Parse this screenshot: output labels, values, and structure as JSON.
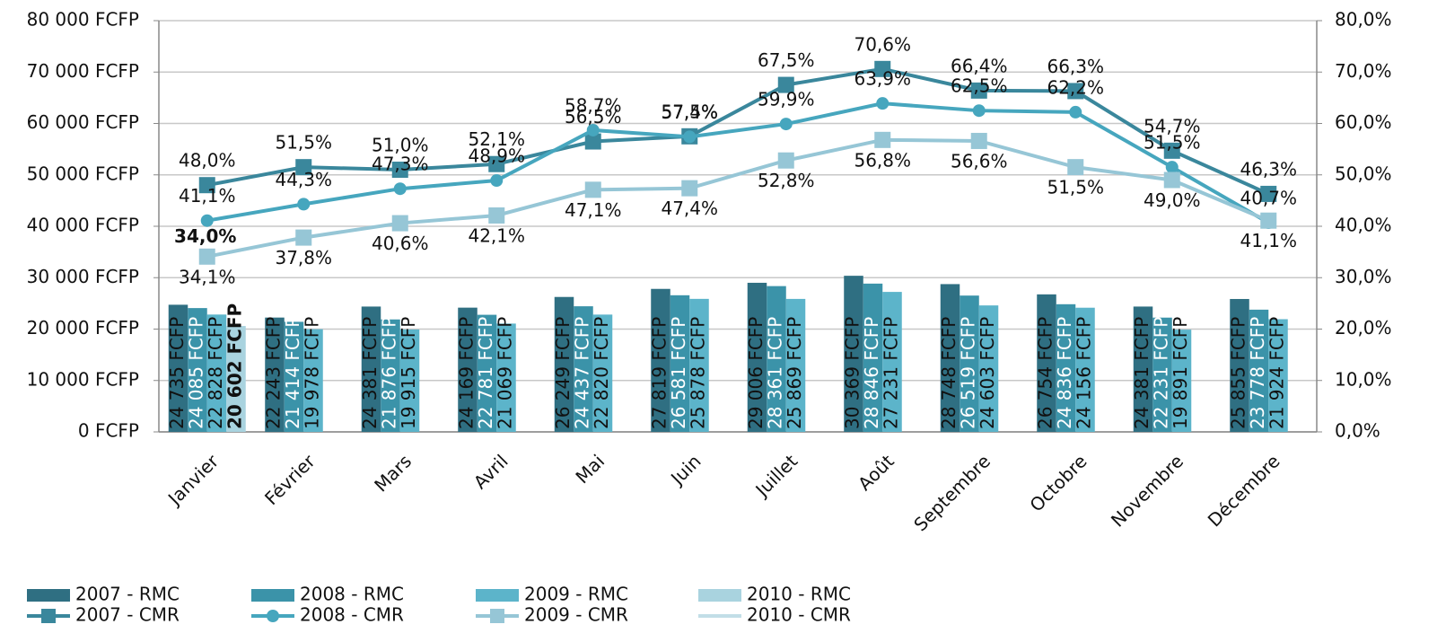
{
  "chart_data": {
    "type": "bar",
    "categories": [
      "Janvier",
      "Février",
      "Mars",
      "Avril",
      "Mai",
      "Juin",
      "Juillet",
      "Août",
      "Septembre",
      "Octobre",
      "Novembre",
      "Décembre"
    ],
    "ylim": [
      0,
      80000
    ],
    "yticks": [
      {
        "value": 0,
        "label": "0 FCFP"
      },
      {
        "value": 10000,
        "label": "10 000 FCFP"
      },
      {
        "value": 20000,
        "label": "20 000 FCFP"
      },
      {
        "value": 30000,
        "label": "30 000 FCFP"
      },
      {
        "value": 40000,
        "label": "40 000 FCFP"
      },
      {
        "value": 50000,
        "label": "50 000 FCFP"
      },
      {
        "value": 60000,
        "label": "60 000 FCFP"
      },
      {
        "value": 70000,
        "label": "70 000 FCFP"
      },
      {
        "value": 80000,
        "label": "80 000 FCFP"
      }
    ],
    "y2lim": [
      0,
      80
    ],
    "y2ticks": [
      {
        "value": 0,
        "label": "0,0%"
      },
      {
        "value": 10,
        "label": "10,0%"
      },
      {
        "value": 20,
        "label": "20,0%"
      },
      {
        "value": 30,
        "label": "30,0%"
      },
      {
        "value": 40,
        "label": "40,0%"
      },
      {
        "value": 50,
        "label": "50,0%"
      },
      {
        "value": 60,
        "label": "60,0%"
      },
      {
        "value": 70,
        "label": "70,0%"
      },
      {
        "value": 80,
        "label": "80,0%"
      }
    ],
    "grid": true,
    "legend": "bottom",
    "series": [
      {
        "name": "2007 - RMC",
        "type": "bar",
        "color": "#2f6f82",
        "values": [
          24735,
          22243,
          24381,
          24169,
          26249,
          27819,
          29006,
          30369,
          28748,
          26754,
          24381,
          25855
        ],
        "value_labels": [
          "24 735 FCFP",
          "22 243 FCFP",
          "24 381 FCFP",
          "24 169 FCFP",
          "26 249 FCFP",
          "27 819 FCFP",
          "29 006 FCFP",
          "30 369 FCFP",
          "28 748 FCFP",
          "26 754 FCFP",
          "24 381 FCFP",
          "25 855 FCFP"
        ]
      },
      {
        "name": "2008 - RMC",
        "type": "bar",
        "color": "#3b93a9",
        "values": [
          24085,
          21414,
          21876,
          22781,
          24437,
          26581,
          28361,
          28846,
          26519,
          24836,
          22231,
          23778
        ],
        "value_labels": [
          "24 085 FCFP",
          "21 414 FCFP",
          "21 876 FCFP",
          "22 781 FCFP",
          "24 437 FCFP",
          "26 581 FCFP",
          "28 361 FCFP",
          "28 846 FCFP",
          "26 519 FCFP",
          "24 836 FCFP",
          "22 231 FCFP",
          "23 778 FCFP"
        ]
      },
      {
        "name": "2009 - RMC",
        "type": "bar",
        "color": "#5cb4ca",
        "values": [
          22828,
          19978,
          19915,
          21069,
          22820,
          25878,
          25869,
          27231,
          24603,
          24156,
          19891,
          21924
        ],
        "value_labels": [
          "22 828 FCFP",
          "19 978 FCFP",
          "19 915 FCFP",
          "21 069 FCFP",
          "22 820 FCFP",
          "25 878 FCFP",
          "25 869 FCFP",
          "27 231 FCFP",
          "24 603 FCFP",
          "24 156 FCFP",
          "19 891 FCFP",
          "21 924 FCFP"
        ]
      },
      {
        "name": "2010 - RMC",
        "type": "bar",
        "color": "#a9d3df",
        "values": [
          20602,
          null,
          null,
          null,
          null,
          null,
          null,
          null,
          null,
          null,
          null,
          null
        ],
        "value_labels": [
          "20 602 FCFP",
          null,
          null,
          null,
          null,
          null,
          null,
          null,
          null,
          null,
          null,
          null
        ]
      },
      {
        "name": "2007 - CMR",
        "type": "line",
        "axis": "y2",
        "color": "#3a879c",
        "marker": "square",
        "values": [
          48.0,
          51.5,
          51.0,
          52.1,
          56.5,
          57.5,
          67.5,
          70.6,
          66.4,
          66.3,
          54.7,
          46.3
        ],
        "value_labels": [
          "48,0%",
          "51,5%",
          "51,0%",
          "52,1%",
          "56,5%",
          "57,5%",
          "67,5%",
          "70,6%",
          "66,4%",
          "66,3%",
          "54,7%",
          "46,3%"
        ]
      },
      {
        "name": "2008 - CMR",
        "type": "line",
        "axis": "y2",
        "color": "#46a6be",
        "marker": "circle",
        "values": [
          41.1,
          44.3,
          47.3,
          48.9,
          58.7,
          57.4,
          59.9,
          63.9,
          62.5,
          62.2,
          51.5,
          40.7
        ],
        "value_labels": [
          "41,1%",
          "44,3%",
          "47,3%",
          "48,9%",
          "58,7%",
          "57,4%",
          "59,9%",
          "63,9%",
          "62,5%",
          "62,2%",
          "51,5%",
          "40,7%"
        ]
      },
      {
        "name": "2009 - CMR",
        "type": "line",
        "axis": "y2",
        "color": "#96c6d6",
        "marker": "square",
        "values": [
          34.1,
          37.8,
          40.6,
          42.1,
          47.1,
          47.4,
          52.8,
          56.8,
          56.6,
          51.5,
          49.0,
          41.1
        ],
        "value_labels": [
          "34,1%",
          "37,8%",
          "40,6%",
          "42,1%",
          "47,1%",
          "47,4%",
          "52,8%",
          "56,8%",
          "56,6%",
          "51,5%",
          "49,0%",
          "41,1%"
        ]
      },
      {
        "name": "2010 - CMR",
        "type": "line",
        "axis": "y2",
        "color": "#c2dee7",
        "marker": "none",
        "values": [
          34.0,
          null,
          null,
          null,
          null,
          null,
          null,
          null,
          null,
          null,
          null,
          null
        ],
        "value_labels": [
          "34,0%",
          null,
          null,
          null,
          null,
          null,
          null,
          null,
          null,
          null,
          null,
          null
        ]
      }
    ]
  }
}
